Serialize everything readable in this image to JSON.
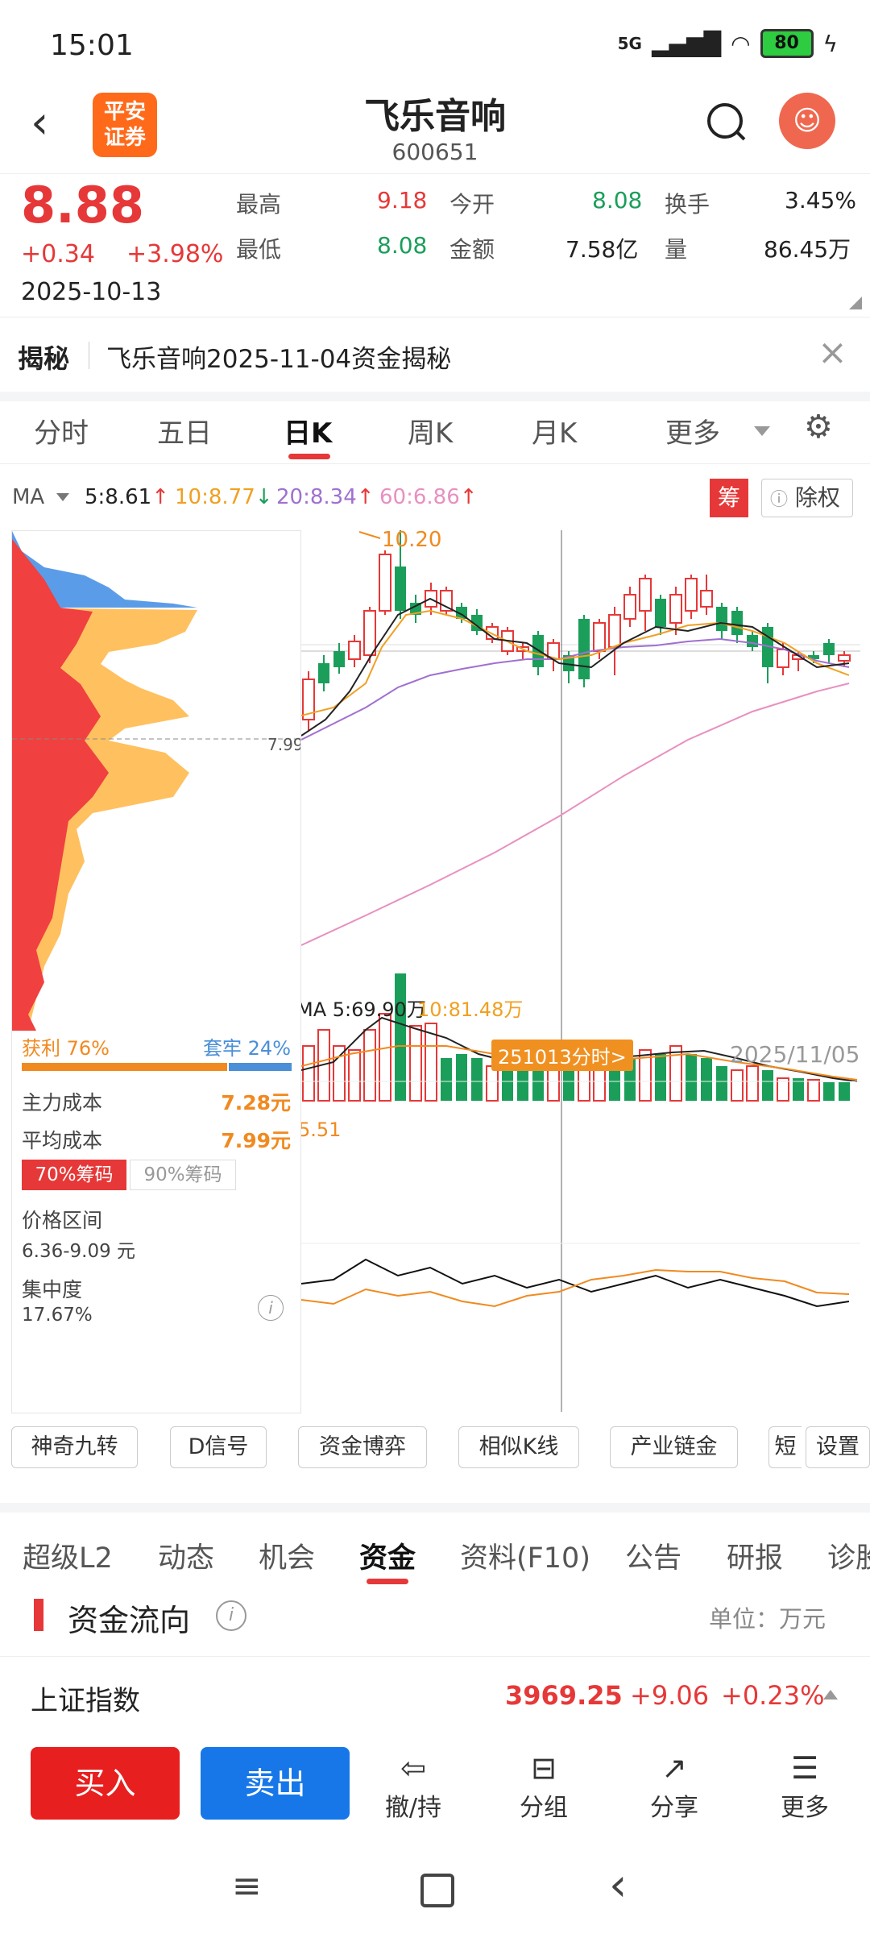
{
  "status_bar": {
    "time": "15:01",
    "network": "5G",
    "battery": "80"
  },
  "header": {
    "logo_line1": "平安",
    "logo_line2": "证券",
    "name": "飞乐音响",
    "code": "600651"
  },
  "quote": {
    "price": "8.88",
    "change": "+0.34",
    "change_pct": "+3.98%",
    "date": "2025-10-13",
    "high_label": "最高",
    "high": "9.18",
    "open_label": "今开",
    "open": "8.08",
    "turnover_label": "换手",
    "turnover": "3.45%",
    "low_label": "最低",
    "low": "8.08",
    "amount_label": "金额",
    "amount": "7.58亿",
    "volume_label": "量",
    "volume": "86.45万"
  },
  "reveal": {
    "tag": "揭秘",
    "text": "飞乐音响2025-11-04资金揭秘"
  },
  "period_tabs": [
    "分时",
    "五日",
    "日K",
    "周K",
    "月K",
    "更多"
  ],
  "active_period": "日K",
  "ma_bar": {
    "label": "MA",
    "ma5": "5:8.61",
    "ma10": "10:8.77",
    "ma20": "20:8.34",
    "ma60": "60:6.86",
    "chip_btn": "筹",
    "exright_btn": "除权"
  },
  "chips": {
    "profit_label": "获利",
    "profit_pct": "76%",
    "trapped_label": "套牢",
    "trapped_pct": "24%",
    "main_cost_label": "主力成本",
    "main_cost": "7.28元",
    "avg_cost_label": "平均成本",
    "avg_cost": "7.99元",
    "tab70": "70%筹码",
    "tab90": "90%筹码",
    "range_label": "价格区间",
    "range": "6.36-9.09 元",
    "conc_label": "集中度",
    "conc": "17.67%",
    "avg_line_label": "7.99"
  },
  "chart_labels": {
    "high_mark": "10.20",
    "crosshair_tag": "251013分时>",
    "date": "2025/11/05",
    "vol_ma": "MA 5:69.90万",
    "vol_ma10": "10:81.48万",
    "ind_value": "5.51"
  },
  "tools": [
    "神奇九转",
    "D信号",
    "资金博弈",
    "相似K线",
    "产业链金",
    "短",
    "设置"
  ],
  "section_tabs": [
    "超级L2",
    "动态",
    "机会",
    "资金",
    "资料(F10)",
    "公告",
    "研报",
    "诊股"
  ],
  "active_section": "资金",
  "fund_flow": {
    "title": "资金流向",
    "unit": "单位：万元"
  },
  "index": {
    "name": "上证指数",
    "value": "3969.25",
    "change": "+9.06",
    "pct": "+0.23%"
  },
  "bottom_bar": {
    "buy": "买入",
    "sell": "卖出",
    "cancel": "撤/持",
    "group": "分组",
    "share": "分享",
    "more": "更多"
  },
  "colors": {
    "up": "#e63838",
    "down": "#1a9e5a",
    "ma5": "#222222",
    "ma10": "#f0a020",
    "ma20": "#a070d0",
    "ma60": "#e890c0"
  }
}
